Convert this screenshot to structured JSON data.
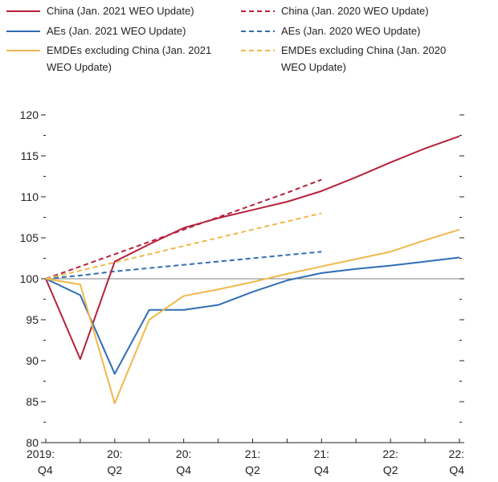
{
  "chart_data": {
    "type": "line",
    "title": "",
    "xlabel": "",
    "ylabel": "",
    "ylim": [
      80,
      120
    ],
    "yticks": [
      80,
      85,
      90,
      95,
      100,
      105,
      110,
      115,
      120
    ],
    "x_tick_labels": [
      {
        "line1": "2019:",
        "line2": "Q4"
      },
      {
        "line1": "20:",
        "line2": "Q2"
      },
      {
        "line1": "20:",
        "line2": "Q4"
      },
      {
        "line1": "21:",
        "line2": "Q2"
      },
      {
        "line1": "21:",
        "line2": "Q4"
      },
      {
        "line1": "22:",
        "line2": "Q2"
      },
      {
        "line1": "22:",
        "line2": "Q4"
      }
    ],
    "x": [
      "2019:Q4",
      "2020:Q1",
      "2020:Q2",
      "2020:Q3",
      "2020:Q4",
      "2021:Q1",
      "2021:Q2",
      "2021:Q3",
      "2021:Q4",
      "2022:Q1",
      "2022:Q2",
      "2022:Q3",
      "2022:Q4"
    ],
    "reference_line": 100,
    "grid": false,
    "legend_position": "top",
    "series": [
      {
        "name": "China (Jan. 2021 WEO Update)",
        "color": "#b5213c",
        "dash": false,
        "values": [
          100,
          90.2,
          102.1,
          104.2,
          106.2,
          107.4,
          108.4,
          109.4,
          110.7,
          112.4,
          114.2,
          115.9,
          117.4
        ]
      },
      {
        "name": "China (Jan. 2020 WEO Update)",
        "color": "#b5213c",
        "dash": true,
        "values": [
          100,
          101.5,
          103.0,
          104.5,
          106.0,
          107.5,
          109.0,
          110.5,
          112.1,
          null,
          null,
          null,
          null
        ]
      },
      {
        "name": "AEs (Jan. 2021 WEO Update)",
        "color": "#2f6db5",
        "dash": false,
        "values": [
          100,
          98.0,
          88.4,
          96.2,
          96.2,
          96.8,
          98.4,
          99.8,
          100.7,
          101.2,
          101.6,
          102.1,
          102.6
        ]
      },
      {
        "name": "AEs (Jan. 2020 WEO Update)",
        "color": "#2f6db5",
        "dash": true,
        "values": [
          100,
          100.4,
          100.9,
          101.3,
          101.7,
          102.1,
          102.5,
          102.9,
          103.3,
          null,
          null,
          null,
          null
        ]
      },
      {
        "name": "EMDEs excluding China (Jan. 2021 WEO Update)",
        "color": "#f0b84a",
        "dash": false,
        "values": [
          100,
          99.3,
          84.8,
          95.0,
          97.9,
          98.7,
          99.6,
          100.6,
          101.5,
          102.4,
          103.3,
          104.7,
          106.0
        ]
      },
      {
        "name": "EMDEs excluding China (Jan. 2020 WEO Update)",
        "color": "#f0b84a",
        "dash": true,
        "values": [
          100,
          101.0,
          102.0,
          103.0,
          104.0,
          105.0,
          106.0,
          107.0,
          108.0,
          null,
          null,
          null,
          null
        ]
      }
    ],
    "legend": [
      {
        "color": "#b5213c",
        "dash": false,
        "lines": [
          "China (Jan. 2021 WEO Update)"
        ]
      },
      {
        "color": "#b5213c",
        "dash": true,
        "lines": [
          "China (Jan. 2020 WEO Update)"
        ]
      },
      {
        "color": "#2f6db5",
        "dash": false,
        "lines": [
          "AEs (Jan. 2021 WEO Update)"
        ]
      },
      {
        "color": "#2f6db5",
        "dash": true,
        "lines": [
          "AEs (Jan. 2020 WEO Update)"
        ]
      },
      {
        "color": "#f0b84a",
        "dash": false,
        "lines": [
          "EMDEs excluding China (Jan. 2021",
          "WEO Update)"
        ]
      },
      {
        "color": "#f0b84a",
        "dash": true,
        "lines": [
          "EMDEs excluding China (Jan. 2020",
          "WEO Update)"
        ]
      }
    ]
  }
}
